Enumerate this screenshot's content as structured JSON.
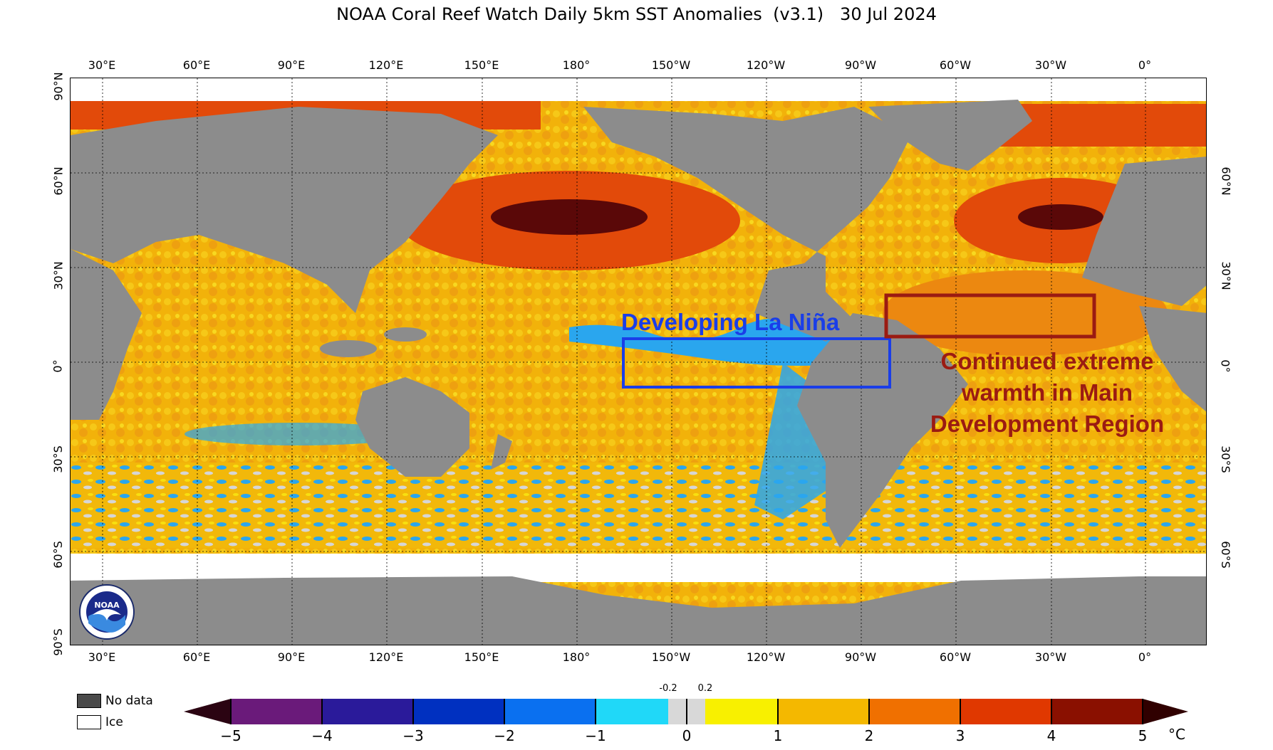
{
  "title": "NOAA Coral Reef Watch Daily 5km SST Anomalies  (v3.1)   30 Jul 2024",
  "lon_labels": [
    "30°E",
    "60°E",
    "90°E",
    "120°E",
    "150°E",
    "180°",
    "150°W",
    "120°W",
    "90°W",
    "60°W",
    "30°W",
    "0°"
  ],
  "lat_labels": [
    "90°N",
    "60°N",
    "30°N",
    "0°",
    "30°S",
    "60°S",
    "90°S"
  ],
  "annotations": {
    "la_nina": "Developing La Niña",
    "mdr_line1": "Continued extreme",
    "mdr_line2": "warmth in Main",
    "mdr_line3": "Development Region"
  },
  "legend": {
    "no_data": "No data",
    "ice": "Ice"
  },
  "colorbar": {
    "ticks": [
      "−5",
      "−4",
      "−3",
      "−2",
      "−1",
      "0",
      "1",
      "2",
      "3",
      "4",
      "5"
    ],
    "small_ticks": [
      "-0.2",
      "0.2"
    ],
    "unit": "°C",
    "colors": {
      "n5": "#2b0412",
      "n4": "#6a1a7a",
      "n3": "#2a1a9a",
      "n2": "#0030c0",
      "n1": "#0a70f0",
      "n0": "#20d8f8",
      "zero": "#d8d8d8",
      "p0": "#f8f000",
      "p1": "#f4b800",
      "p2": "#f07000",
      "p3": "#e03800",
      "p4": "#8a1000",
      "p5": "#300000"
    }
  },
  "colors": {
    "land": "#8c8c8c",
    "nodata": "#4a4a4a",
    "ice": "#ffffff",
    "warm": "#f2b20a",
    "hot": "#e24a0a",
    "extreme": "#5a0808",
    "cool": "#2aa6ee",
    "neutral": "#d6d6d6",
    "la_nina_box": "#1a3ee8",
    "mdr_box": "#9b1b12"
  },
  "logo": {
    "text": "NOAA"
  }
}
